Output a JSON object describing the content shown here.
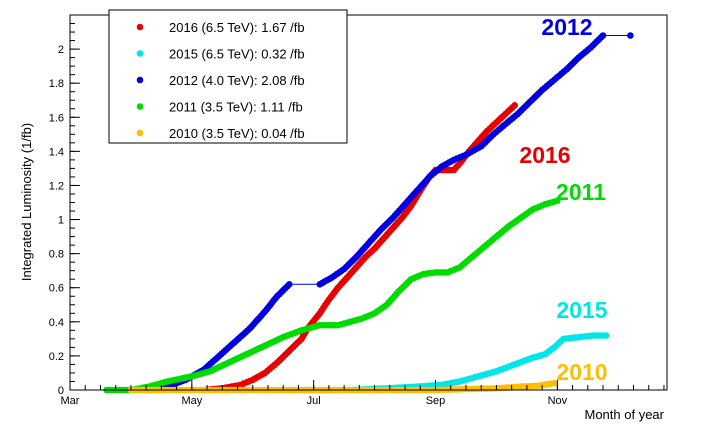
{
  "chart_data": {
    "type": "scatter",
    "title": "",
    "xlabel": "Month of year",
    "ylabel": "Integrated Luminosity (1/fb)",
    "xlim": [
      0,
      9.8
    ],
    "ylim": [
      0,
      2.2
    ],
    "x_ticks": [
      {
        "value": 0,
        "label": "Mar"
      },
      {
        "value": 2,
        "label": "May"
      },
      {
        "value": 4,
        "label": "Jul"
      },
      {
        "value": 6,
        "label": "Sep"
      },
      {
        "value": 8,
        "label": "Nov"
      }
    ],
    "y_ticks": [
      {
        "value": 0,
        "label": "0"
      },
      {
        "value": 0.2,
        "label": "0.2"
      },
      {
        "value": 0.4,
        "label": "0.4"
      },
      {
        "value": 0.6,
        "label": "0.6"
      },
      {
        "value": 0.8,
        "label": "0.8"
      },
      {
        "value": 1.0,
        "label": "1"
      },
      {
        "value": 1.2,
        "label": "1.2"
      },
      {
        "value": 1.4,
        "label": "1.4"
      },
      {
        "value": 1.6,
        "label": "1.6"
      },
      {
        "value": 1.8,
        "label": "1.8"
      },
      {
        "value": 2.0,
        "label": "2"
      }
    ],
    "grid": false,
    "legend_position": "top-left",
    "series": [
      {
        "name": "2016 (6.5 TeV): 1.67 /fb",
        "tag": "2016",
        "color": "#e80000",
        "points": [
          [
            2.2,
            0.0
          ],
          [
            2.5,
            0.01
          ],
          [
            2.8,
            0.03
          ],
          [
            3.0,
            0.06
          ],
          [
            3.2,
            0.1
          ],
          [
            3.4,
            0.16
          ],
          [
            3.6,
            0.23
          ],
          [
            3.8,
            0.3
          ],
          [
            3.9,
            0.36
          ],
          [
            4.1,
            0.45
          ],
          [
            4.25,
            0.53
          ],
          [
            4.4,
            0.6
          ],
          [
            4.55,
            0.66
          ],
          [
            4.7,
            0.72
          ],
          [
            4.85,
            0.78
          ],
          [
            5.0,
            0.83
          ],
          [
            5.15,
            0.89
          ],
          [
            5.3,
            0.95
          ],
          [
            5.45,
            1.01
          ],
          [
            5.6,
            1.08
          ],
          [
            5.75,
            1.17
          ],
          [
            5.9,
            1.25
          ],
          [
            6.0,
            1.29
          ],
          [
            6.3,
            1.29
          ],
          [
            6.4,
            1.33
          ],
          [
            6.55,
            1.4
          ],
          [
            6.7,
            1.46
          ],
          [
            6.85,
            1.52
          ],
          [
            7.0,
            1.57
          ],
          [
            7.15,
            1.62
          ],
          [
            7.3,
            1.67
          ]
        ]
      },
      {
        "name": "2015 (6.5 TeV): 0.32 /fb",
        "tag": "2015",
        "color": "#00e6e6",
        "points": [
          [
            3.4,
            0.0
          ],
          [
            4.0,
            0.0
          ],
          [
            4.6,
            0.0
          ],
          [
            5.2,
            0.01
          ],
          [
            5.7,
            0.02
          ],
          [
            6.1,
            0.03
          ],
          [
            6.4,
            0.05
          ],
          [
            6.7,
            0.08
          ],
          [
            7.0,
            0.11
          ],
          [
            7.3,
            0.15
          ],
          [
            7.6,
            0.19
          ],
          [
            7.8,
            0.21
          ],
          [
            7.95,
            0.25
          ],
          [
            8.1,
            0.3
          ],
          [
            8.6,
            0.32
          ],
          [
            8.8,
            0.32
          ]
        ]
      },
      {
        "name": "2012 (4.0 TeV): 2.08 /fb",
        "tag": "2012",
        "color": "#0000e0",
        "points": [
          [
            1.3,
            0.0
          ],
          [
            1.6,
            0.02
          ],
          [
            1.9,
            0.06
          ],
          [
            2.2,
            0.12
          ],
          [
            2.45,
            0.2
          ],
          [
            2.7,
            0.28
          ],
          [
            2.95,
            0.36
          ],
          [
            3.2,
            0.46
          ],
          [
            3.4,
            0.55
          ],
          [
            3.6,
            0.62
          ],
          [
            4.1,
            0.62
          ],
          [
            4.3,
            0.66
          ],
          [
            4.5,
            0.71
          ],
          [
            4.7,
            0.78
          ],
          [
            4.9,
            0.86
          ],
          [
            5.1,
            0.94
          ],
          [
            5.3,
            1.01
          ],
          [
            5.5,
            1.09
          ],
          [
            5.7,
            1.17
          ],
          [
            5.9,
            1.25
          ],
          [
            6.1,
            1.31
          ],
          [
            6.3,
            1.35
          ],
          [
            6.5,
            1.38
          ],
          [
            6.75,
            1.43
          ],
          [
            6.95,
            1.5
          ],
          [
            7.15,
            1.56
          ],
          [
            7.35,
            1.62
          ],
          [
            7.55,
            1.69
          ],
          [
            7.75,
            1.76
          ],
          [
            7.95,
            1.82
          ],
          [
            8.15,
            1.88
          ],
          [
            8.35,
            1.95
          ],
          [
            8.55,
            2.01
          ],
          [
            8.75,
            2.08
          ],
          [
            9.2,
            2.08
          ]
        ]
      },
      {
        "name": "2011 (3.5 TeV): 1.11 /fb",
        "tag": "2011",
        "color": "#00dc00",
        "points": [
          [
            0.6,
            0.0
          ],
          [
            1.0,
            0.0
          ],
          [
            1.3,
            0.02
          ],
          [
            1.6,
            0.05
          ],
          [
            2.0,
            0.08
          ],
          [
            2.3,
            0.11
          ],
          [
            2.6,
            0.16
          ],
          [
            2.9,
            0.21
          ],
          [
            3.2,
            0.26
          ],
          [
            3.5,
            0.31
          ],
          [
            3.8,
            0.35
          ],
          [
            4.1,
            0.38
          ],
          [
            4.4,
            0.38
          ],
          [
            4.6,
            0.4
          ],
          [
            4.8,
            0.42
          ],
          [
            5.0,
            0.45
          ],
          [
            5.2,
            0.5
          ],
          [
            5.4,
            0.58
          ],
          [
            5.6,
            0.65
          ],
          [
            5.8,
            0.68
          ],
          [
            6.0,
            0.69
          ],
          [
            6.2,
            0.69
          ],
          [
            6.4,
            0.72
          ],
          [
            6.6,
            0.78
          ],
          [
            6.8,
            0.84
          ],
          [
            7.0,
            0.9
          ],
          [
            7.2,
            0.96
          ],
          [
            7.4,
            1.01
          ],
          [
            7.6,
            1.06
          ],
          [
            7.8,
            1.09
          ],
          [
            8.0,
            1.11
          ]
        ]
      },
      {
        "name": "2010 (3.5 TeV): 0.04 /fb",
        "tag": "2010",
        "color": "#ffbf00",
        "points": [
          [
            1.0,
            0.0
          ],
          [
            1.5,
            0.0
          ],
          [
            2.0,
            0.0
          ],
          [
            2.5,
            0.0
          ],
          [
            3.0,
            0.0
          ],
          [
            3.5,
            0.0
          ],
          [
            4.0,
            0.0
          ],
          [
            4.5,
            0.0
          ],
          [
            5.0,
            0.0
          ],
          [
            5.5,
            0.0
          ],
          [
            6.0,
            0.0
          ],
          [
            6.5,
            0.005
          ],
          [
            7.0,
            0.01
          ],
          [
            7.4,
            0.02
          ],
          [
            7.7,
            0.025
          ],
          [
            7.95,
            0.04
          ]
        ]
      }
    ]
  }
}
